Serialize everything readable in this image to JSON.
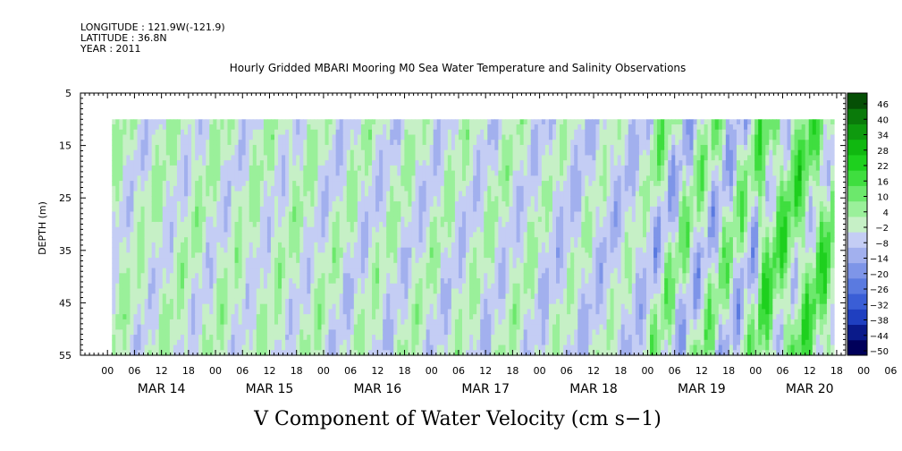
{
  "header": {
    "longitude": "LONGITUDE : 121.9W(-121.9)",
    "latitude": "LATITUDE : 36.8N",
    "year": "YEAR : 2011"
  },
  "chart_data": {
    "type": "heatmap",
    "title": "Hourly Gridded MBARI Mooring M0 Sea Water Temperature and Salinity Observations",
    "xlabel": "V Component of Water Velocity (cm s−1)",
    "ylabel": "DEPTH (m)",
    "y_range": [
      5,
      55
    ],
    "y_inverted": true,
    "y_ticks": [
      5,
      15,
      25,
      35,
      45,
      55
    ],
    "data_depth_range": [
      10,
      55
    ],
    "x_range": [
      "2011-03-13T18:00",
      "2011-03-20T20:00"
    ],
    "x_hour_ticks": [
      "00",
      "06",
      "12",
      "18",
      "00",
      "06",
      "12",
      "18",
      "00",
      "06",
      "12",
      "18",
      "00",
      "06",
      "12",
      "18",
      "00",
      "06",
      "12",
      "18",
      "00",
      "06",
      "12",
      "18",
      "00",
      "06",
      "12",
      "18",
      "00",
      "06",
      "12",
      "18"
    ],
    "x_day_labels": [
      "MAR 14",
      "MAR 15",
      "MAR 16",
      "MAR 17",
      "MAR 18",
      "MAR 19",
      "MAR 20"
    ],
    "data_start": "2011-03-14T01:00",
    "colorbar": {
      "ticks": [
        "46",
        "40",
        "34",
        "28",
        "22",
        "16",
        "10",
        "4",
        "−2",
        "−8",
        "−14",
        "−20",
        "−26",
        "−32",
        "−38",
        "−44",
        "−50"
      ],
      "range": [
        -50,
        50
      ],
      "colors_low_to_high": [
        "#00005a",
        "#0a1a8a",
        "#1f3fc0",
        "#3a5ed6",
        "#5a7ae0",
        "#7e95e8",
        "#a2b0ee",
        "#c4cdf4",
        "#c6f0c6",
        "#9af09a",
        "#6ce86c",
        "#3fde3f",
        "#1ed01e",
        "#10b810",
        "#0e9a0e",
        "#0a7a0a",
        "#054f05"
      ]
    },
    "field_description_by_day": [
      {
        "day": "MAR 14",
        "v_typical_range": [
          -12,
          10
        ]
      },
      {
        "day": "MAR 15",
        "v_typical_range": [
          -12,
          10
        ]
      },
      {
        "day": "MAR 16",
        "v_typical_range": [
          -14,
          10
        ]
      },
      {
        "day": "MAR 17",
        "v_typical_range": [
          -14,
          10
        ]
      },
      {
        "day": "MAR 18",
        "v_typical_range": [
          -16,
          8
        ]
      },
      {
        "day": "MAR 19",
        "v_typical_range": [
          -22,
          20
        ]
      },
      {
        "day": "MAR 20",
        "v_typical_range": [
          -14,
          28
        ]
      }
    ]
  }
}
